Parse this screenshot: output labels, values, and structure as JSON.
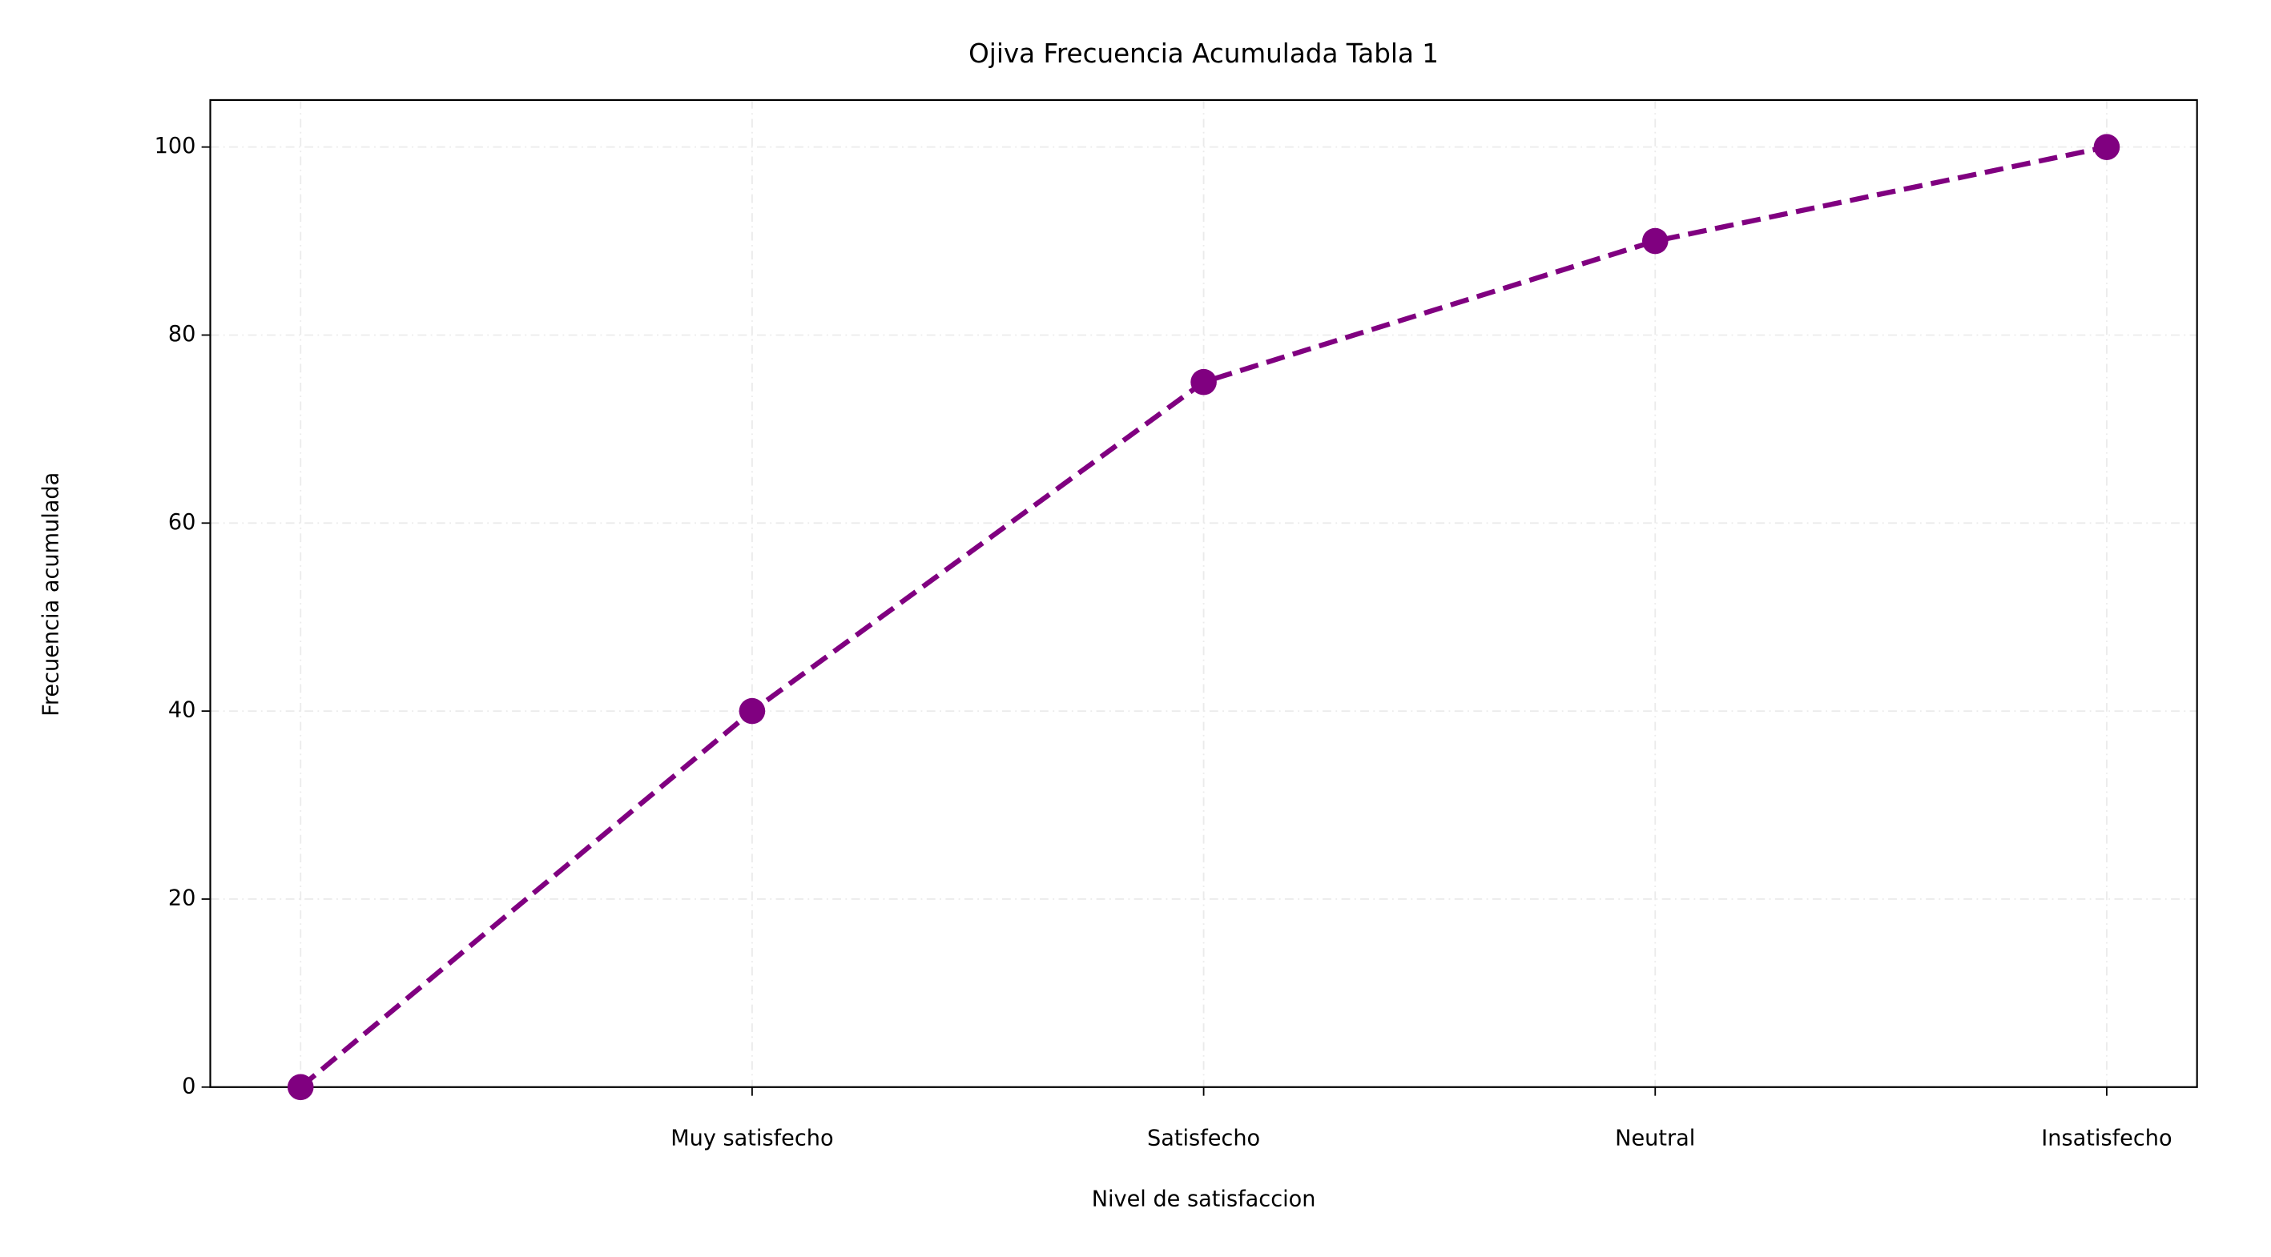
{
  "chart_data": {
    "type": "line",
    "title": "Ojiva Frecuencia Acumulada Tabla 1",
    "x_label": "Nivel de satisfaccion",
    "y_label": "Frecuencia acumulada",
    "categories": [
      null,
      "Muy satisfecho",
      "Satisfecho",
      "Neutral",
      "Insatisfecho"
    ],
    "series": [
      {
        "name": "Frecuencia acumulada",
        "color": "#800080",
        "values": [
          0,
          40,
          75,
          90,
          100
        ]
      }
    ],
    "ylim": [
      0,
      105
    ],
    "yticks": [
      0,
      20,
      40,
      60,
      80,
      100
    ],
    "grid": true,
    "line_style": "dashed",
    "marker": "circle"
  }
}
